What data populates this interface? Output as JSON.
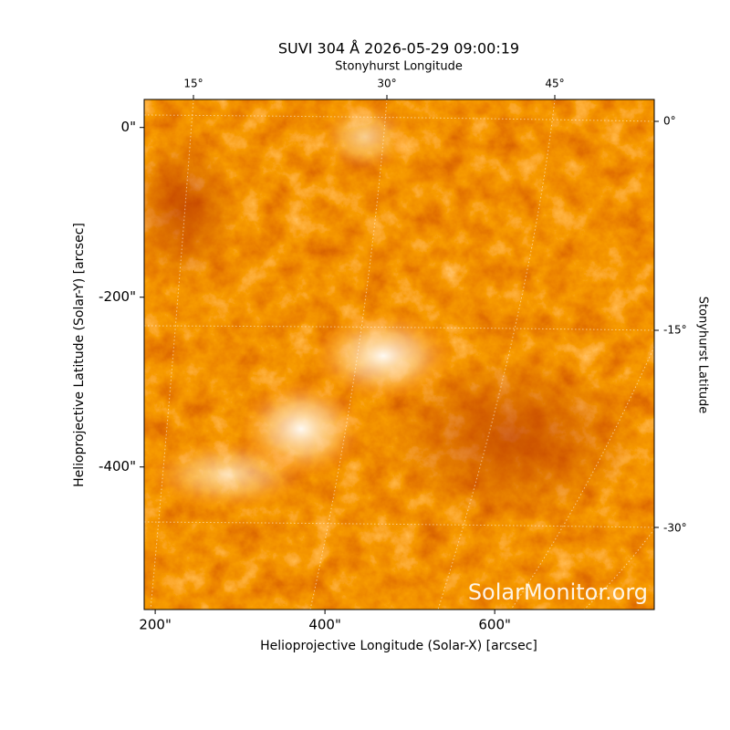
{
  "chart_data": {
    "type": "image",
    "title": "SUVI 304 Å 2026-05-29 09:00:19",
    "xlabel": "Helioprojective Longitude (Solar-X) [arcsec]",
    "ylabel": "Helioprojective Latitude (Solar-Y) [arcsec]",
    "xlim": [
      187,
      788
    ],
    "ylim": [
      -568,
      33
    ],
    "xticks": [
      {
        "value": 200,
        "label": "200\""
      },
      {
        "value": 400,
        "label": "400\""
      },
      {
        "value": 600,
        "label": "600\""
      }
    ],
    "yticks": [
      {
        "value": 0,
        "label": "0\""
      },
      {
        "value": -200,
        "label": "-200\""
      },
      {
        "value": -400,
        "label": "-400\""
      }
    ],
    "top_axis": {
      "label": "Stonyhurst Longitude",
      "ticks": [
        "15°",
        "30°",
        "45°"
      ]
    },
    "right_axis": {
      "label": "Stonyhurst Latitude",
      "ticks": [
        "0°",
        "-15°",
        "-30°"
      ]
    },
    "watermark": "SolarMonitor.org"
  }
}
